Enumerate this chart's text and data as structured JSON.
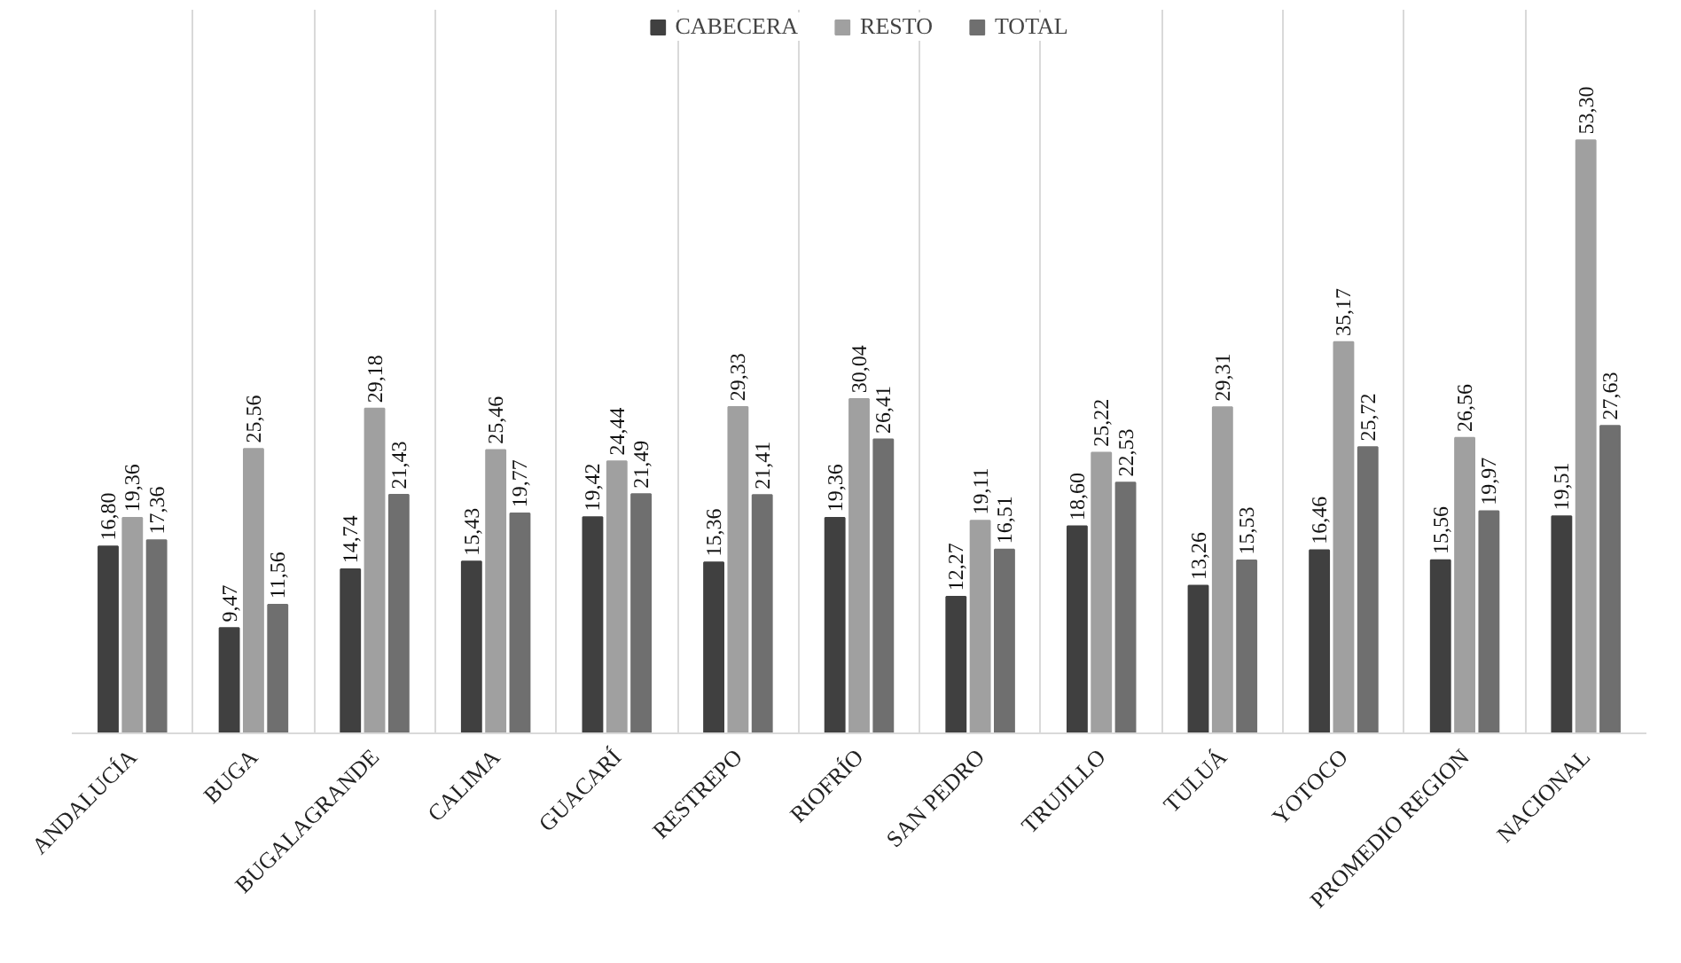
{
  "chart_data": {
    "type": "bar",
    "categories": [
      "ANDALUCÍA",
      "BUGA",
      "BUGALAGRANDE",
      "CALIMA",
      "GUACARÍ",
      "RESTREPO",
      "RIOFRÍO",
      "SAN PEDRO",
      "TRUJILLO",
      "TULUÁ",
      "YOTOCO",
      "PROMEDIO REGION",
      "NACIONAL"
    ],
    "series": [
      {
        "name": "CABECERA",
        "color": "#404040",
        "values": [
          16.8,
          9.47,
          14.74,
          15.43,
          19.42,
          15.36,
          19.36,
          12.27,
          18.6,
          13.26,
          16.46,
          15.56,
          19.51
        ],
        "value_labels": [
          "16,80",
          "9,47",
          "14,74",
          "15,43",
          "19,42",
          "15,36",
          "19,36",
          "12,27",
          "18,60",
          "13,26",
          "16,46",
          "15,56",
          "19,51"
        ]
      },
      {
        "name": "RESTO",
        "color": "#a0a0a0",
        "values": [
          19.36,
          25.56,
          29.18,
          25.46,
          24.44,
          29.33,
          30.04,
          19.11,
          25.22,
          29.31,
          35.17,
          26.56,
          53.3
        ],
        "value_labels": [
          "19,36",
          "25,56",
          "29,18",
          "25,46",
          "24,44",
          "29,33",
          "30,04",
          "19,11",
          "25,22",
          "29,31",
          "35,17",
          "26,56",
          "53,30"
        ]
      },
      {
        "name": "TOTAL",
        "color": "#6f6f6f",
        "values": [
          17.36,
          11.56,
          21.43,
          19.77,
          21.49,
          21.41,
          26.41,
          16.51,
          22.53,
          15.53,
          25.72,
          19.97,
          27.63
        ],
        "value_labels": [
          "17,36",
          "11,56",
          "21,43",
          "19,77",
          "21,49",
          "21,41",
          "26,41",
          "16,51",
          "22,53",
          "15,53",
          "25,72",
          "19,97",
          "27,63"
        ]
      }
    ],
    "legend": "top",
    "grid": "x"
  }
}
